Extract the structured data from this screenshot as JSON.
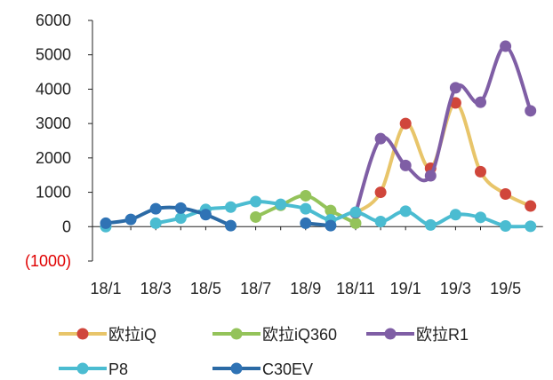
{
  "chart_data": {
    "type": "line",
    "x": [
      "18/1",
      "18/2",
      "18/3",
      "18/4",
      "18/5",
      "18/6",
      "18/7",
      "18/8",
      "18/9",
      "18/10",
      "18/11",
      "18/12",
      "19/1",
      "19/2",
      "19/3",
      "19/4",
      "19/5",
      "19/6"
    ],
    "x_tick_labels": [
      "18/1",
      "18/3",
      "18/5",
      "18/7",
      "18/9",
      "18/11",
      "19/1",
      "19/3",
      "19/5"
    ],
    "y_tick_labels": [
      "6000",
      "5000",
      "4000",
      "3000",
      "2000",
      "1000",
      "0",
      "(1000)"
    ],
    "y_tick_values": [
      6000,
      5000,
      4000,
      3000,
      2000,
      1000,
      0,
      -1000
    ],
    "ylim": [
      -1000,
      6000
    ],
    "grid": false,
    "legend_position": "bottom",
    "title": "",
    "xlabel": "",
    "ylabel": "",
    "colors": {
      "axis": "#222222",
      "negative_label": "#e00000",
      "tick_text": "#222222"
    },
    "series": [
      {
        "name": "欧拉iQ",
        "line_color": "#e8c56a",
        "marker_color": "#d0463b",
        "values": [
          null,
          null,
          null,
          null,
          null,
          null,
          null,
          null,
          null,
          null,
          400,
          1000,
          3000,
          1700,
          3600,
          1600,
          950,
          600
        ]
      },
      {
        "name": "欧拉iQ360",
        "line_color": "#94c35a",
        "marker_color": "#94c35a",
        "values": [
          null,
          null,
          null,
          null,
          null,
          null,
          280,
          620,
          900,
          470,
          100,
          null,
          null,
          null,
          null,
          null,
          null,
          null
        ]
      },
      {
        "name": "欧拉R1",
        "line_color": "#7f5ea5",
        "marker_color": "#7f5ea5",
        "values": [
          null,
          null,
          null,
          null,
          null,
          null,
          null,
          null,
          null,
          null,
          400,
          2560,
          1780,
          1480,
          4040,
          3620,
          5250,
          3370
        ]
      },
      {
        "name": "P8",
        "line_color": "#4bbcd1",
        "marker_color": "#4bbcd1",
        "values": [
          0,
          null,
          100,
          250,
          500,
          570,
          730,
          650,
          520,
          200,
          420,
          150,
          450,
          50,
          350,
          270,
          20,
          10
        ]
      },
      {
        "name": "C30EV",
        "line_color": "#2b6aa5",
        "marker_color": "#2f73b5",
        "values": [
          100,
          210,
          520,
          540,
          350,
          30,
          null,
          null,
          100,
          30,
          null,
          null,
          null,
          null,
          null,
          null,
          null,
          null
        ]
      }
    ]
  }
}
